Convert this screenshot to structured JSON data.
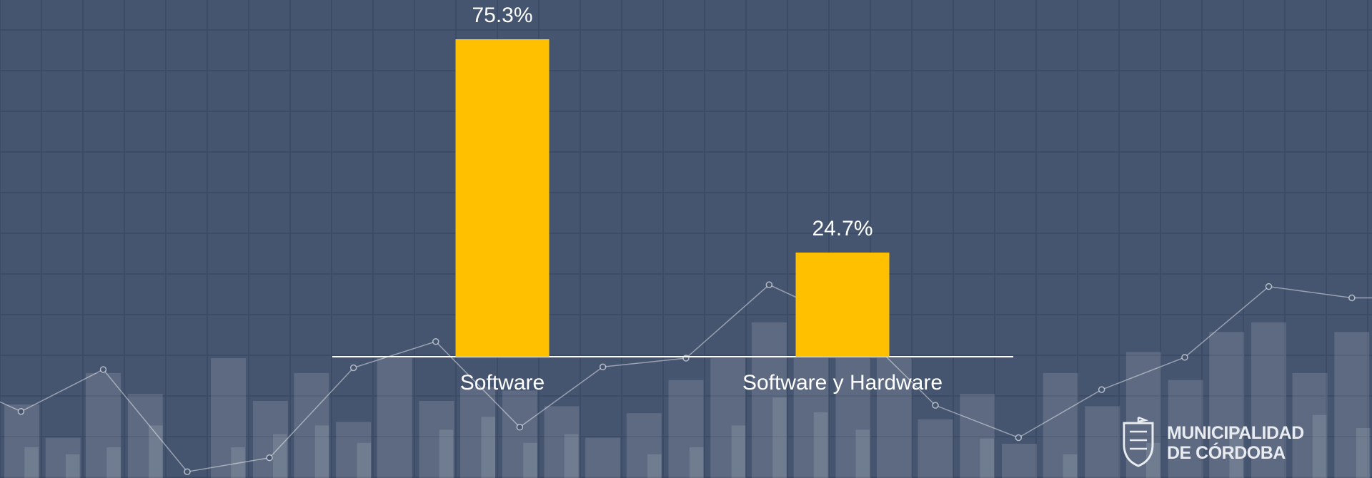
{
  "chart_data": {
    "type": "bar",
    "categories": [
      "Software",
      "Software y Hardware"
    ],
    "values": [
      75.3,
      24.7
    ],
    "value_labels": [
      "75.3%",
      "24.7%"
    ],
    "color": "#ffc000"
  },
  "logo": {
    "line1": "MUNICIPALIDAD",
    "line2": "DE CÓRDOBA"
  }
}
